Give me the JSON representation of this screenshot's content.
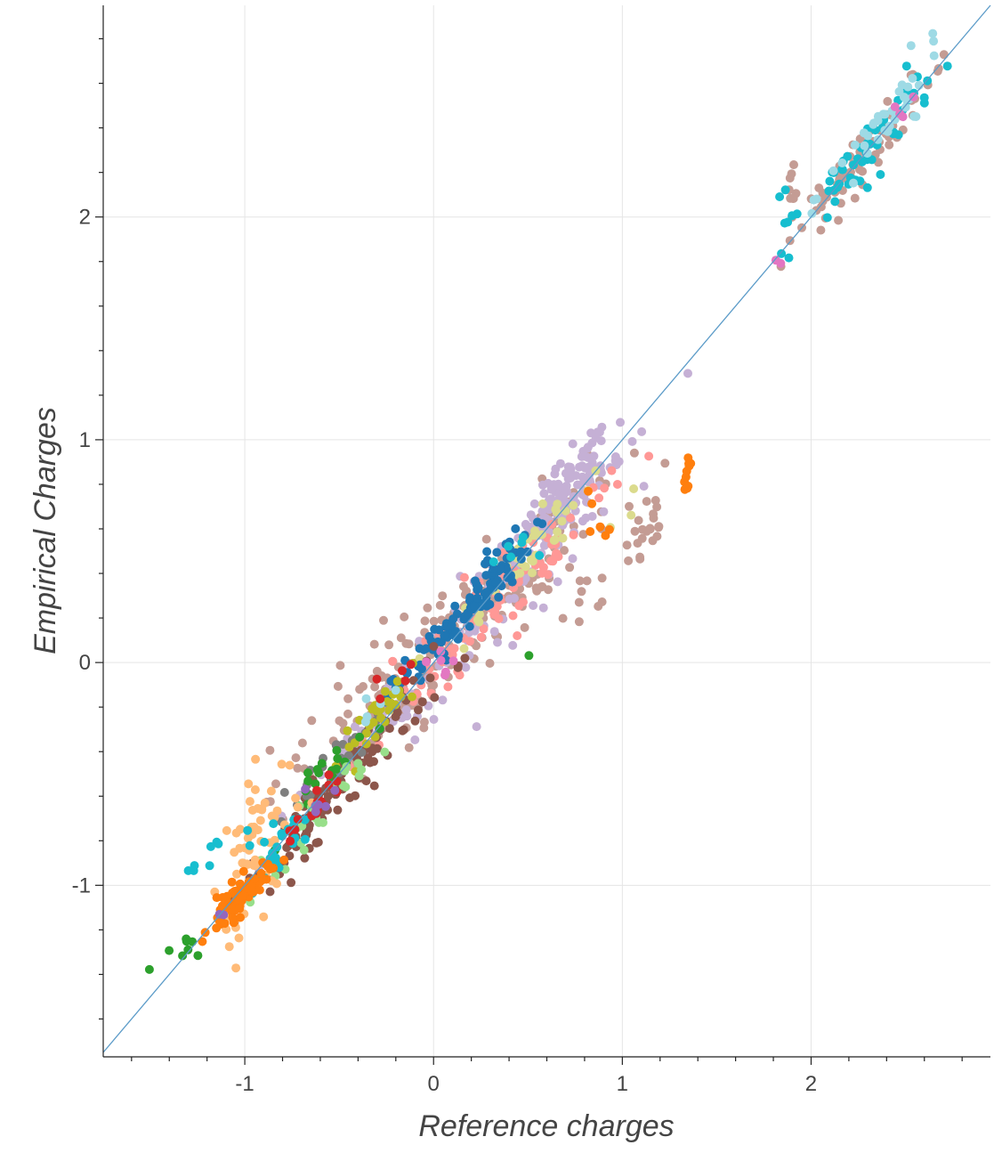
{
  "chart_data": {
    "type": "scatter",
    "title": "",
    "xlabel": "Reference charges",
    "ylabel": "Empirical Charges",
    "xlim": [
      -1.75,
      2.95
    ],
    "ylim": [
      -1.77,
      2.95
    ],
    "grid": true,
    "legend": "none",
    "x_ticks": [
      -1,
      0,
      1,
      2
    ],
    "y_ticks": [
      -1,
      0,
      1,
      2
    ],
    "x_tick_labels": [
      "-1",
      "0",
      "1",
      "2"
    ],
    "y_tick_labels": [
      "-1",
      "0",
      "1",
      "2"
    ],
    "reference_line": {
      "from": [
        -1.75,
        -1.75
      ],
      "to": [
        2.95,
        2.95
      ],
      "color": "#5b9bc8"
    },
    "series": [
      {
        "color": "#c49c94",
        "clusters": [
          [
            0.0,
            0.05,
            0.42,
            0.13,
            0.7,
            120
          ],
          [
            0.3,
            0.3,
            0.34,
            0.12,
            0.9,
            90
          ],
          [
            -0.25,
            -0.2,
            0.2,
            0.1,
            0.9,
            40
          ],
          [
            2.35,
            2.35,
            0.2,
            0.05,
            0.95,
            60
          ],
          [
            2.12,
            2.1,
            0.05,
            0.05,
            1.0,
            12
          ],
          [
            1.9,
            2.0,
            0.03,
            0.12,
            0.0,
            10
          ],
          [
            1.12,
            0.6,
            0.06,
            0.12,
            0.0,
            22
          ],
          [
            0.78,
            0.35,
            0.1,
            0.15,
            0.0,
            14
          ]
        ]
      },
      {
        "color": "#c5b0d5",
        "clusters": [
          [
            0.7,
            0.75,
            0.12,
            0.08,
            0.95,
            120
          ],
          [
            0.4,
            0.35,
            0.3,
            0.12,
            0.9,
            80
          ],
          [
            -0.3,
            -0.3,
            0.3,
            0.08,
            0.95,
            50
          ],
          [
            0.95,
            0.9,
            0.06,
            0.05,
            0.9,
            8
          ]
        ]
      },
      {
        "color": "#ff9896",
        "clusters": [
          [
            0.5,
            0.4,
            0.3,
            0.08,
            0.9,
            60
          ],
          [
            0.05,
            0.1,
            0.2,
            0.1,
            0.9,
            30
          ]
        ]
      },
      {
        "color": "#dbdb8d",
        "clusters": [
          [
            0.45,
            0.45,
            0.2,
            0.06,
            0.95,
            45
          ],
          [
            0.98,
            0.65,
            0.05,
            0.05,
            0.5,
            3
          ]
        ]
      },
      {
        "color": "#1f77b4",
        "clusters": [
          [
            0.15,
            0.2,
            0.18,
            0.05,
            0.95,
            110
          ],
          [
            0.35,
            0.45,
            0.1,
            0.05,
            0.7,
            10
          ]
        ]
      },
      {
        "color": "#8c564b",
        "clusters": [
          [
            -0.45,
            -0.5,
            0.27,
            0.07,
            0.95,
            90
          ],
          [
            -0.7,
            -0.75,
            0.12,
            0.06,
            0.9,
            30
          ]
        ]
      },
      {
        "color": "#7f7f7f",
        "clusters": [
          [
            -0.55,
            -0.48,
            0.15,
            0.05,
            0.9,
            25
          ]
        ]
      },
      {
        "color": "#bcbd22",
        "clusters": [
          [
            -0.25,
            -0.2,
            0.12,
            0.05,
            0.9,
            30
          ]
        ]
      },
      {
        "color": "#2ca02c",
        "clusters": [
          [
            -0.5,
            -0.45,
            0.12,
            0.05,
            0.9,
            18
          ],
          [
            -1.28,
            -1.27,
            0.06,
            0.03,
            0.5,
            8
          ],
          [
            0.5,
            0.03,
            0.01,
            0.01,
            0.0,
            1
          ]
        ]
      },
      {
        "color": "#98df8a",
        "clusters": [
          [
            -0.65,
            -0.7,
            0.15,
            0.05,
            0.9,
            25
          ]
        ]
      },
      {
        "color": "#ffbb78",
        "clusters": [
          [
            -0.92,
            -0.8,
            0.1,
            0.16,
            0.8,
            55
          ],
          [
            -1.08,
            -1.18,
            0.02,
            0.04,
            0.0,
            6
          ]
        ]
      },
      {
        "color": "#17becf",
        "clusters": [
          [
            -0.82,
            -0.85,
            0.07,
            0.05,
            0.9,
            25
          ],
          [
            -1.12,
            -0.83,
            0.1,
            0.04,
            0.5,
            10
          ],
          [
            2.3,
            2.3,
            0.18,
            0.07,
            0.95,
            50
          ],
          [
            1.88,
            1.85,
            0.04,
            0.1,
            0.0,
            8
          ],
          [
            0.45,
            0.55,
            0.1,
            0.05,
            0.5,
            6
          ]
        ]
      },
      {
        "color": "#9edae5",
        "clusters": [
          [
            2.4,
            2.42,
            0.15,
            0.08,
            0.9,
            40
          ],
          [
            -0.3,
            -0.2,
            0.1,
            0.05,
            0.5,
            5
          ]
        ]
      },
      {
        "color": "#ff7f0e",
        "clusters": [
          [
            -1.03,
            -1.06,
            0.08,
            0.04,
            0.8,
            70
          ],
          [
            1.34,
            0.86,
            0.01,
            0.04,
            0.0,
            10
          ],
          [
            0.88,
            0.6,
            0.05,
            0.1,
            0.0,
            6
          ]
        ]
      },
      {
        "color": "#d62728",
        "clusters": [
          [
            -0.6,
            -0.6,
            0.12,
            0.04,
            0.9,
            15
          ],
          [
            -0.15,
            -0.05,
            0.05,
            0.04,
            0.5,
            5
          ]
        ]
      },
      {
        "color": "#9467bd",
        "clusters": [
          [
            -0.6,
            -0.6,
            0.05,
            0.04,
            0.5,
            6
          ],
          [
            -1.15,
            -1.14,
            0.02,
            0.02,
            0.0,
            2
          ]
        ]
      },
      {
        "color": "#e377c2",
        "clusters": [
          [
            0.05,
            0.0,
            0.05,
            0.04,
            0.5,
            6
          ],
          [
            1.82,
            1.81,
            0.01,
            0.01,
            0.0,
            2
          ],
          [
            2.45,
            2.45,
            0.05,
            0.03,
            0.5,
            4
          ]
        ]
      }
    ]
  }
}
